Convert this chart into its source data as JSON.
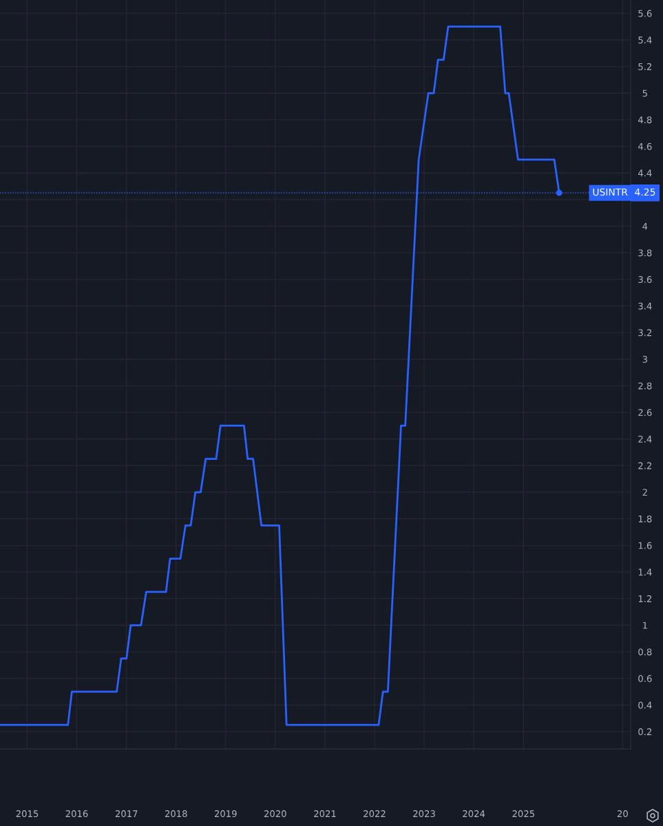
{
  "chart_data": {
    "type": "line",
    "xlim": [
      "2014-06-15",
      "2027-03-01"
    ],
    "xticks": [
      "2015",
      "2016",
      "2017",
      "2018",
      "2019",
      "2020",
      "2021",
      "2022",
      "2023",
      "2024",
      "2025",
      {
        "value": "2027",
        "label": "20"
      }
    ],
    "ylim": [
      0.07,
      5.7
    ],
    "yticks": [
      0.2,
      0.4,
      0.6,
      0.8,
      1,
      1.2,
      1.4,
      1.6,
      1.8,
      2,
      2.2,
      2.4,
      2.6,
      2.8,
      3,
      3.2,
      3.4,
      3.6,
      3.8,
      4,
      {
        "value": 4.2,
        "label": null
      },
      4.4,
      4.6,
      4.8,
      5,
      5.2,
      5.4,
      5.6
    ],
    "grid": true,
    "series": [
      {
        "name": "USINTR",
        "color": "#2962ff",
        "x": [
          "2014-06-15",
          "2015-10-28",
          "2015-11-26",
          "2016-10-21",
          "2016-11-23",
          "2017-01-01",
          "2017-02-01",
          "2017-04-18",
          "2017-05-26",
          "2017-10-19",
          "2017-11-18",
          "2018-02-02",
          "2018-03-11",
          "2018-04-19",
          "2018-05-23",
          "2018-07-01",
          "2018-08-07",
          "2018-10-23",
          "2018-11-24",
          "2019-05-16",
          "2019-06-12",
          "2019-07-22",
          "2019-09-21",
          "2020-01-30",
          "2020-03-24",
          "2022-01-31",
          "2022-03-04",
          "2022-04-09",
          "2022-07-15",
          "2022-08-15",
          "2022-11-22",
          "2023-02-01",
          "2023-03-13",
          "2023-04-13",
          "2023-05-24",
          "2023-06-27",
          "2024-07-14",
          "2024-08-20",
          "2024-09-15",
          "2024-11-22",
          "2025-08-16",
          "2025-09-21"
        ],
        "values": [
          0.25,
          0.25,
          0.5,
          0.5,
          0.75,
          0.75,
          1,
          1,
          1.25,
          1.25,
          1.5,
          1.5,
          1.75,
          1.75,
          2,
          2,
          2.25,
          2.25,
          2.5,
          2.5,
          2.25,
          2.25,
          1.75,
          1.75,
          0.25,
          0.25,
          0.5,
          0.5,
          2.5,
          2.5,
          4.5,
          5,
          5,
          5.25,
          5.25,
          5.5,
          5.5,
          5,
          5,
          4.5,
          4.5,
          4.25
        ]
      },
      {
        "type": "scatter",
        "color": "#2962ff",
        "marker": "circle",
        "x": [
          "2025-09-21"
        ],
        "values": [
          4.25
        ]
      }
    ],
    "ref_lines": [
      {
        "axis": "y",
        "value": 4.25,
        "label": "4.25",
        "color": "#2962ff",
        "line_style": "dotted"
      }
    ]
  }
}
